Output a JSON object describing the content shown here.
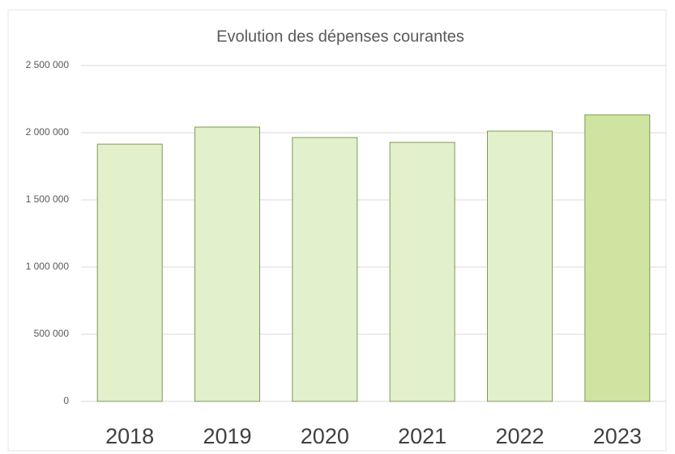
{
  "chart_data": {
    "type": "bar",
    "title": "Evolution des dépenses courantes",
    "categories": [
      "2018",
      "2019",
      "2020",
      "2021",
      "2022",
      "2023"
    ],
    "values": [
      1915000,
      2042000,
      1964000,
      1928000,
      2012000,
      2133000
    ],
    "colors": [
      "#e2f0cb",
      "#e2f0cb",
      "#e2f0cb",
      "#e2f0cb",
      "#e2f0cb",
      "#cfe4a0"
    ],
    "ylim": [
      0,
      2500000
    ],
    "yticks": [
      0,
      {
        "value": 500000,
        "label": "500 000"
      },
      {
        "value": 1000000,
        "label": "1 000 000"
      },
      {
        "value": 1500000,
        "label": "1 500 000"
      },
      {
        "value": 2000000,
        "label": "2 000 000"
      },
      {
        "value": 2500000,
        "label": "2 500 000"
      }
    ],
    "grid": true
  }
}
